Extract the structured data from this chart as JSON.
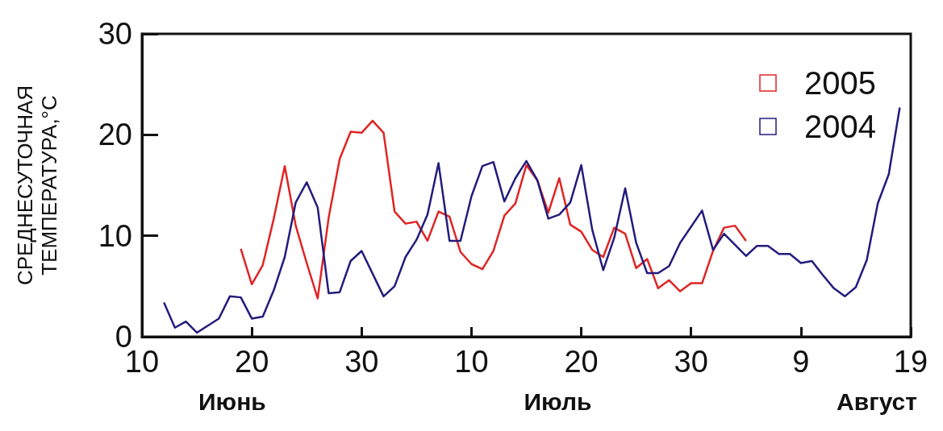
{
  "chart_data": {
    "type": "line",
    "ylabel": "СРЕДНЕСУТОЧНАЯ\nТЕМПЕРАТУРА,°C",
    "xlim": [
      "--06-10",
      "--08-19"
    ],
    "xticks": [
      {
        "value": "--06-10",
        "label": "10"
      },
      {
        "value": "--06-20",
        "label": "20"
      },
      {
        "value": "--06-30",
        "label": "30"
      },
      {
        "value": "--07-10",
        "label": "10"
      },
      {
        "value": "--07-20",
        "label": "20"
      },
      {
        "value": "--07-30",
        "label": "30"
      },
      {
        "value": "--08-09",
        "label": "9"
      },
      {
        "value": "--08-19",
        "label": "19"
      }
    ],
    "ylim": [
      0,
      30
    ],
    "yticks": [
      0,
      10,
      20,
      30
    ],
    "grid": false,
    "legend": "top right",
    "marker": "none",
    "line_style": "solid",
    "annotations": [
      "Июнь",
      "Июль",
      "Август"
    ],
    "series": [
      {
        "name": "2005",
        "color": "#e02424",
        "x": [
          "--06-19",
          "--06-20",
          "--06-21",
          "--06-22",
          "--06-23",
          "--06-24",
          "--06-25",
          "--06-26",
          "--06-27",
          "--06-28",
          "--06-29",
          "--06-30",
          "--07-01",
          "--07-02",
          "--07-03",
          "--07-04",
          "--07-05",
          "--07-06",
          "--07-07",
          "--07-08",
          "--07-09",
          "--07-10",
          "--07-11",
          "--07-12",
          "--07-13",
          "--07-14",
          "--07-15",
          "--07-16",
          "--07-17",
          "--07-18",
          "--07-19",
          "--07-20",
          "--07-21",
          "--07-22",
          "--07-23",
          "--07-24",
          "--07-25",
          "--07-26",
          "--07-27",
          "--07-28",
          "--07-29",
          "--07-30",
          "--07-31",
          "--08-01",
          "--08-02",
          "--08-03",
          "--08-04"
        ],
        "values": [
          8.7,
          5.2,
          7.1,
          11.7,
          16.9,
          11.0,
          7.3,
          3.8,
          11.8,
          17.6,
          20.3,
          20.2,
          21.4,
          20.2,
          12.4,
          11.2,
          11.4,
          9.5,
          12.4,
          11.9,
          8.4,
          7.2,
          6.7,
          8.5,
          12.0,
          13.2,
          17.0,
          15.5,
          12.3,
          15.7,
          11.1,
          10.4,
          8.6,
          7.9,
          10.8,
          10.2,
          6.8,
          7.7,
          4.8,
          5.6,
          4.5,
          5.3,
          5.3,
          8.5,
          10.8,
          11.0,
          9.5
        ]
      },
      {
        "name": "2004",
        "color": "#231c7c",
        "x": [
          "--06-12",
          "--06-13",
          "--06-14",
          "--06-15",
          "--06-16",
          "--06-17",
          "--06-18",
          "--06-19",
          "--06-20",
          "--06-21",
          "--06-22",
          "--06-23",
          "--06-24",
          "--06-25",
          "--06-26",
          "--06-27",
          "--06-28",
          "--06-29",
          "--06-30",
          "--07-02",
          "--07-03",
          "--07-04",
          "--07-05",
          "--07-06",
          "--07-07",
          "--07-08",
          "--07-09",
          "--07-10",
          "--07-11",
          "--07-12",
          "--07-13",
          "--07-14",
          "--07-15",
          "--07-16",
          "--07-17",
          "--07-18",
          "--07-19",
          "--07-20",
          "--07-21",
          "--07-22",
          "--07-23",
          "--07-24",
          "--07-25",
          "--07-26",
          "--07-27",
          "--07-28",
          "--07-29",
          "--07-31",
          "--08-01",
          "--08-02",
          "--08-04",
          "--08-05",
          "--08-06",
          "--08-07",
          "--08-08",
          "--08-09",
          "--08-10",
          "--08-11",
          "--08-12",
          "--08-13",
          "--08-14",
          "--08-15",
          "--08-16",
          "--08-17",
          "--08-18"
        ],
        "values": [
          3.4,
          0.9,
          1.5,
          0.4,
          1.1,
          1.8,
          4.0,
          3.9,
          1.8,
          2.0,
          4.6,
          7.9,
          13.3,
          15.3,
          12.8,
          4.3,
          4.4,
          7.5,
          8.5,
          4.0,
          5.0,
          7.9,
          9.6,
          12.1,
          17.2,
          9.5,
          9.5,
          13.9,
          16.9,
          17.3,
          13.4,
          15.7,
          17.4,
          15.5,
          11.7,
          12.1,
          13.3,
          17.0,
          10.6,
          6.6,
          9.8,
          14.7,
          9.3,
          6.3,
          6.3,
          7.0,
          9.3,
          12.5,
          8.6,
          10.2,
          8.0,
          9.0,
          9.0,
          8.2,
          8.2,
          7.3,
          7.5,
          6.1,
          4.8,
          4.0,
          4.9,
          7.6,
          13.2,
          16.1,
          22.7
        ]
      }
    ]
  }
}
